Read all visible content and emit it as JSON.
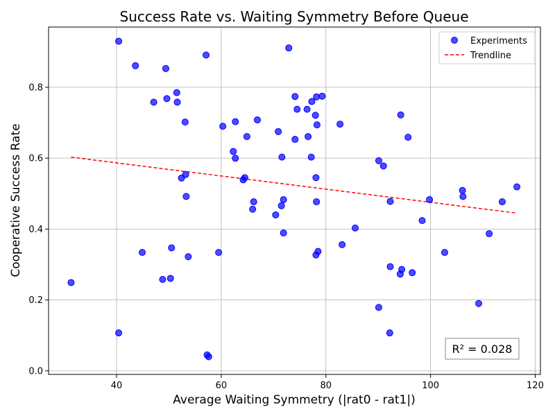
{
  "chart_data": {
    "type": "scatter",
    "title": "Success Rate vs. Waiting Symmetry Before Queue",
    "xlabel": "Average Waiting Symmetry (|rat0 - rat1|)",
    "ylabel": "Cooperative Success Rate",
    "xlim": [
      27,
      121
    ],
    "ylim": [
      -0.01,
      0.97
    ],
    "xticks": [
      40,
      60,
      80,
      100,
      120
    ],
    "xtick_labels": [
      "40",
      "60",
      "80",
      "100",
      "120"
    ],
    "yticks": [
      0.0,
      0.2,
      0.4,
      0.6,
      0.8
    ],
    "ytick_labels": [
      "0.0",
      "0.2",
      "0.4",
      "0.6",
      "0.8"
    ],
    "grid": true,
    "legend_position": "top-right",
    "colors": {
      "points": "#0000ff",
      "trendline": "#ff0000"
    },
    "series": [
      {
        "name": "Experiments",
        "kind": "scatter",
        "points": [
          [
            31.3,
            0.249
          ],
          [
            40.4,
            0.93
          ],
          [
            40.4,
            0.107
          ],
          [
            43.6,
            0.861
          ],
          [
            44.9,
            0.334
          ],
          [
            47.1,
            0.758
          ],
          [
            48.8,
            0.258
          ],
          [
            49.4,
            0.853
          ],
          [
            49.6,
            0.768
          ],
          [
            50.3,
            0.261
          ],
          [
            50.5,
            0.347
          ],
          [
            51.5,
            0.785
          ],
          [
            51.6,
            0.758
          ],
          [
            52.4,
            0.544
          ],
          [
            53.1,
            0.702
          ],
          [
            53.2,
            0.554
          ],
          [
            53.3,
            0.492
          ],
          [
            53.7,
            0.322
          ],
          [
            57.1,
            0.891
          ],
          [
            57.3,
            0.045
          ],
          [
            57.6,
            0.04
          ],
          [
            59.5,
            0.334
          ],
          [
            60.3,
            0.69
          ],
          [
            62.3,
            0.619
          ],
          [
            62.7,
            0.703
          ],
          [
            62.7,
            0.6
          ],
          [
            64.2,
            0.539
          ],
          [
            64.5,
            0.545
          ],
          [
            64.9,
            0.661
          ],
          [
            66.0,
            0.456
          ],
          [
            66.2,
            0.477
          ],
          [
            66.9,
            0.708
          ],
          [
            70.4,
            0.44
          ],
          [
            70.9,
            0.675
          ],
          [
            71.5,
            0.466
          ],
          [
            71.6,
            0.603
          ],
          [
            71.9,
            0.483
          ],
          [
            71.9,
            0.389
          ],
          [
            72.9,
            0.911
          ],
          [
            74.1,
            0.774
          ],
          [
            74.1,
            0.653
          ],
          [
            74.5,
            0.738
          ],
          [
            76.4,
            0.738
          ],
          [
            76.6,
            0.661
          ],
          [
            77.2,
            0.603
          ],
          [
            77.3,
            0.76
          ],
          [
            78.0,
            0.721
          ],
          [
            78.1,
            0.545
          ],
          [
            78.2,
            0.773
          ],
          [
            78.2,
            0.477
          ],
          [
            78.3,
            0.694
          ],
          [
            78.1,
            0.327
          ],
          [
            78.5,
            0.337
          ],
          [
            79.3,
            0.775
          ],
          [
            82.7,
            0.696
          ],
          [
            83.1,
            0.356
          ],
          [
            85.6,
            0.403
          ],
          [
            90.1,
            0.593
          ],
          [
            90.1,
            0.179
          ],
          [
            91.0,
            0.578
          ],
          [
            92.2,
            0.107
          ],
          [
            92.3,
            0.478
          ],
          [
            92.3,
            0.294
          ],
          [
            94.2,
            0.273
          ],
          [
            94.3,
            0.722
          ],
          [
            94.5,
            0.286
          ],
          [
            95.7,
            0.659
          ],
          [
            96.5,
            0.277
          ],
          [
            98.4,
            0.424
          ],
          [
            99.8,
            0.483
          ],
          [
            102.7,
            0.334
          ],
          [
            106.1,
            0.509
          ],
          [
            106.2,
            0.492
          ],
          [
            109.2,
            0.19
          ],
          [
            111.2,
            0.387
          ],
          [
            113.7,
            0.477
          ],
          [
            116.5,
            0.519
          ]
        ]
      },
      {
        "name": "Trendline",
        "kind": "line",
        "style": "dashed",
        "points": [
          [
            31.3,
            0.603
          ],
          [
            116.5,
            0.445
          ]
        ]
      }
    ],
    "annotation": "R² = 0.028"
  }
}
